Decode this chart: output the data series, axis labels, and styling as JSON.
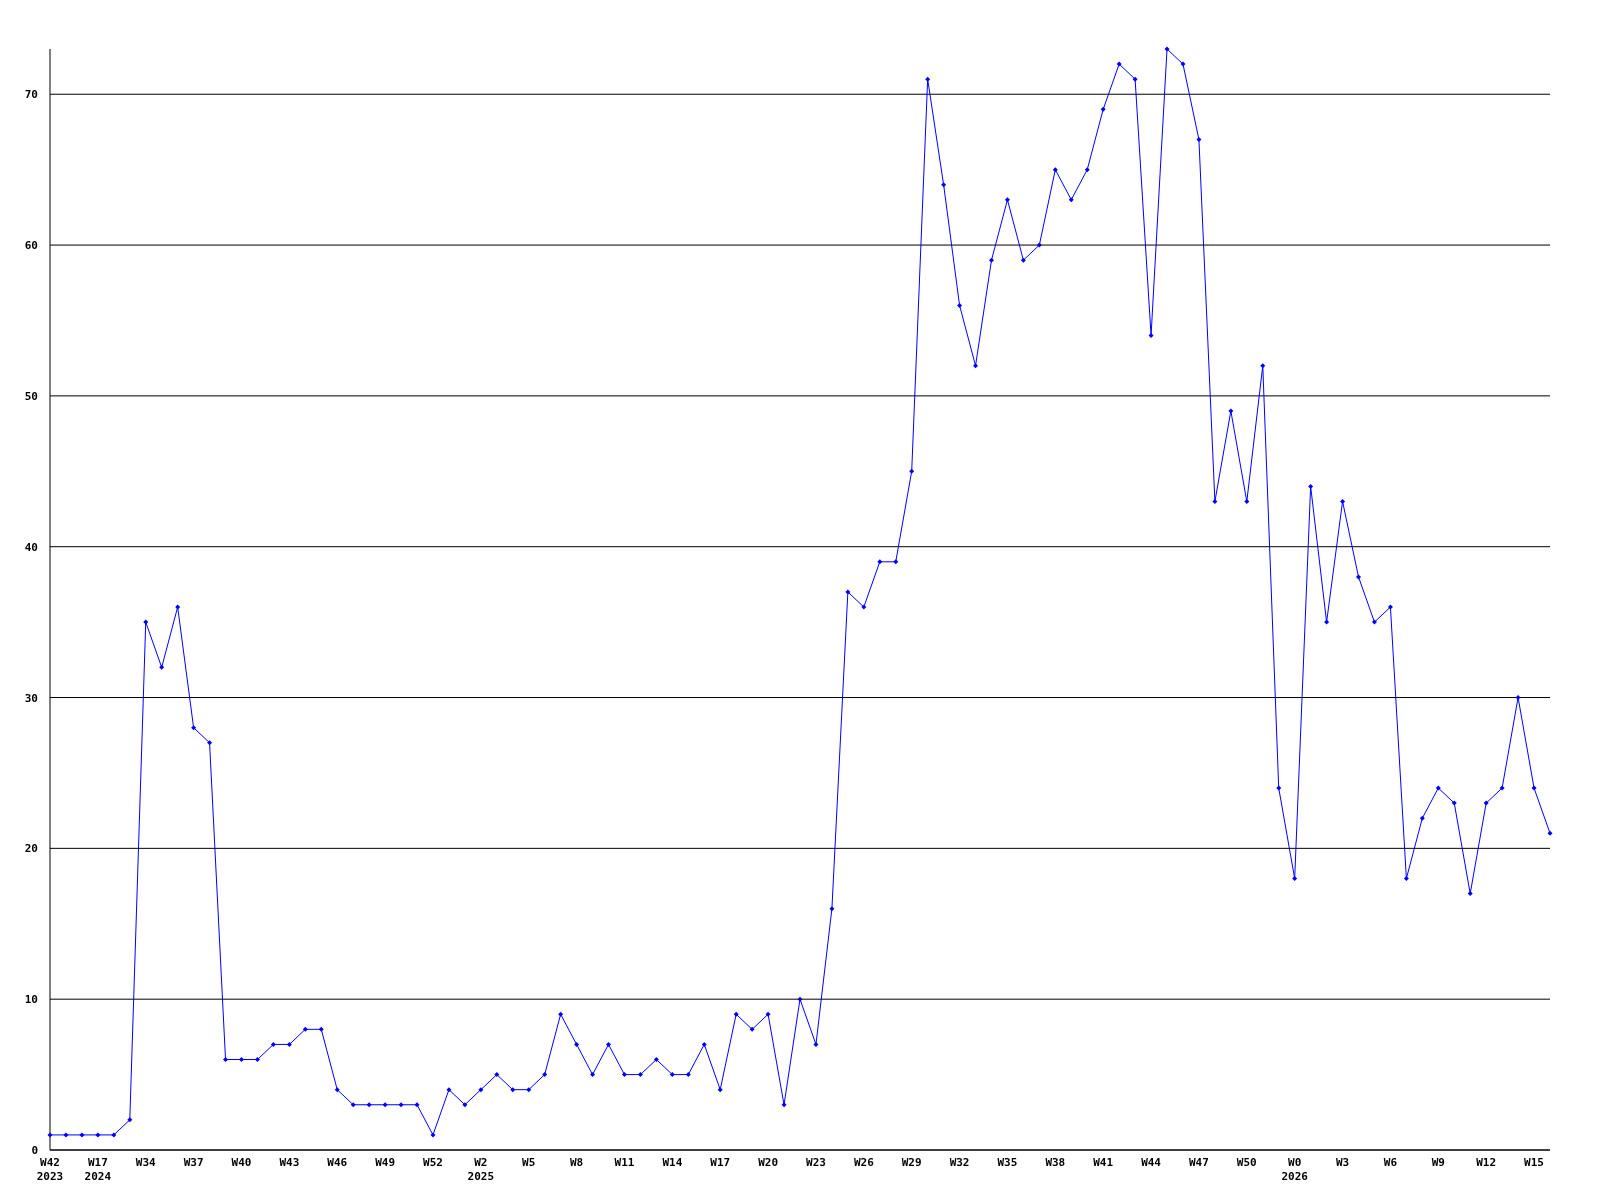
{
  "chart_data": {
    "type": "line",
    "categories": [
      "W42\n2023",
      null,
      null,
      "W17\n2024",
      null,
      null,
      "W34",
      null,
      null,
      "W37",
      null,
      null,
      "W40",
      null,
      null,
      "W43",
      null,
      null,
      "W46",
      null,
      null,
      "W49",
      null,
      null,
      "W52",
      null,
      null,
      "W2\n2025",
      null,
      null,
      "W5",
      null,
      null,
      "W8",
      null,
      null,
      "W11",
      null,
      null,
      "W14",
      null,
      null,
      "W17",
      null,
      null,
      "W20",
      null,
      null,
      "W23",
      null,
      null,
      "W26",
      null,
      null,
      "W29",
      null,
      null,
      "W32",
      null,
      null,
      "W35",
      null,
      null,
      "W38",
      null,
      null,
      "W41",
      null,
      null,
      "W44",
      null,
      null,
      "W47",
      null,
      null,
      "W50",
      null,
      null,
      "W0\n2026",
      null,
      null,
      "W3",
      null,
      null,
      "W6",
      null,
      null,
      "W9",
      null,
      null,
      "W12",
      null,
      null,
      "W15",
      null
    ],
    "series": [
      {
        "color": "#0000ff",
        "values": [
          1,
          1,
          1,
          1,
          1,
          2,
          35,
          32,
          36,
          28,
          27,
          6,
          6,
          6,
          7,
          7,
          8,
          8,
          4,
          3,
          3,
          3,
          3,
          3,
          1,
          4,
          3,
          4,
          5,
          4,
          4,
          5,
          9,
          7,
          5,
          7,
          5,
          5,
          6,
          5,
          5,
          7,
          4,
          9,
          8,
          9,
          3,
          10,
          7,
          16,
          37,
          36,
          39,
          39,
          45,
          71,
          64,
          56,
          52,
          59,
          63,
          59,
          60,
          65,
          63,
          65,
          69,
          72,
          71,
          54,
          73,
          72,
          67,
          43,
          49,
          43,
          52,
          24,
          18,
          44,
          35,
          43,
          38,
          35,
          36,
          18,
          22,
          24,
          23,
          17,
          23,
          24,
          30,
          24,
          21
        ]
      }
    ],
    "ylim": [
      0,
      73
    ],
    "yticks": [
      0,
      10,
      20,
      30,
      40,
      50,
      60,
      70
    ],
    "grid": "y",
    "marker": "diamond",
    "line_style": "solid"
  }
}
